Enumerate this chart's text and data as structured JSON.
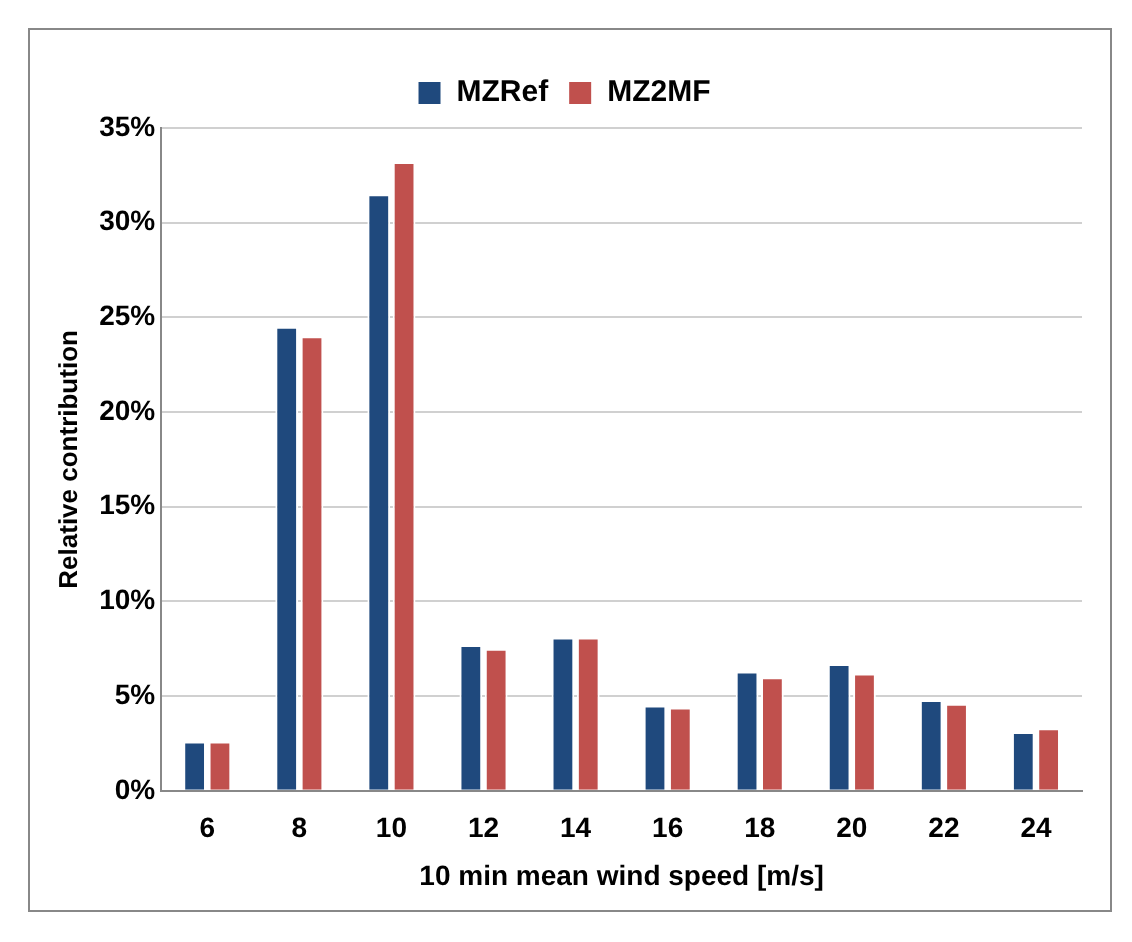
{
  "chart_data": {
    "type": "bar",
    "xlabel": "10 min mean wind speed [m/s]",
    "ylabel": "Relative contribution",
    "categories": [
      "6",
      "8",
      "10",
      "12",
      "14",
      "16",
      "18",
      "20",
      "22",
      "24"
    ],
    "series": [
      {
        "name": "MZRef",
        "color": "#1f497d",
        "values": [
          2.6,
          24.5,
          31.5,
          7.7,
          8.1,
          4.5,
          6.3,
          6.7,
          4.8,
          3.1
        ]
      },
      {
        "name": "MZ2MF",
        "color": "#c0504d",
        "values": [
          2.6,
          24.0,
          33.2,
          7.5,
          8.1,
          4.4,
          6.0,
          6.2,
          4.6,
          3.3
        ]
      }
    ],
    "ylim": [
      0,
      35
    ],
    "yticks": [
      {
        "value": 0,
        "label": "0%"
      },
      {
        "value": 5,
        "label": "5%"
      },
      {
        "value": 10,
        "label": "10%"
      },
      {
        "value": 15,
        "label": "15%"
      },
      {
        "value": 20,
        "label": "20%"
      },
      {
        "value": 25,
        "label": "25%"
      },
      {
        "value": 30,
        "label": "30%"
      },
      {
        "value": 35,
        "label": "35%"
      }
    ],
    "grid": "y",
    "legend": "top"
  }
}
